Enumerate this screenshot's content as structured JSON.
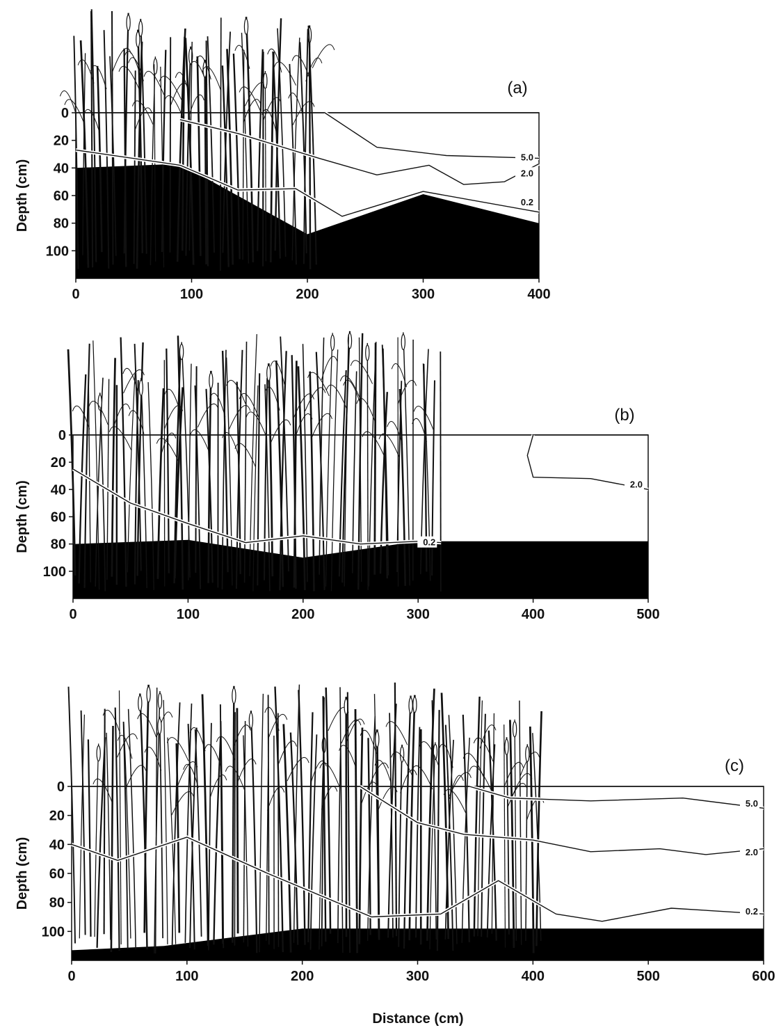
{
  "figure": {
    "xlabel": "Distance (cm)"
  },
  "colors": {
    "sediment": "#000000",
    "vegetation": "#111111",
    "contour": "#111111"
  },
  "chart_data": [
    {
      "type": "contour",
      "panel_label": "(a)",
      "ylabel": "Depth (cm)",
      "xlim": [
        0,
        400
      ],
      "ylim": [
        0,
        120
      ],
      "x_ticks": [
        "0",
        "100",
        "200",
        "300",
        "400"
      ],
      "y_ticks": [
        "0",
        "20",
        "40",
        "60",
        "80",
        "100"
      ],
      "vegetation_extent": [
        0,
        210
      ],
      "bottom_profile": [
        [
          0,
          40
        ],
        [
          90,
          37
        ],
        [
          200,
          88
        ],
        [
          300,
          59
        ],
        [
          400,
          80
        ]
      ],
      "contours": [
        {
          "label": "5.0",
          "points": [
            [
              215,
              0
            ],
            [
              260,
              25
            ],
            [
              320,
              31
            ],
            [
              400,
              33
            ]
          ]
        },
        {
          "label": "2.0",
          "points": [
            [
              90,
              5
            ],
            [
              140,
              15
            ],
            [
              210,
              33
            ],
            [
              260,
              45
            ],
            [
              305,
              38
            ],
            [
              335,
              52
            ],
            [
              370,
              50
            ],
            [
              400,
              37
            ]
          ]
        },
        {
          "label": "0.2",
          "points": [
            [
              0,
              27
            ],
            [
              90,
              38
            ],
            [
              140,
              56
            ],
            [
              190,
              55
            ],
            [
              230,
              75
            ],
            [
              300,
              57
            ],
            [
              400,
              72
            ]
          ]
        }
      ]
    },
    {
      "type": "contour",
      "panel_label": "(b)",
      "ylabel": "Depth (cm)",
      "xlim": [
        0,
        500
      ],
      "ylim": [
        0,
        120
      ],
      "x_ticks": [
        "0",
        "100",
        "200",
        "300",
        "400",
        "500"
      ],
      "y_ticks": [
        "0",
        "20",
        "40",
        "60",
        "80",
        "100"
      ],
      "vegetation_extent": [
        0,
        320
      ],
      "bottom_profile": [
        [
          0,
          80
        ],
        [
          100,
          77
        ],
        [
          200,
          90
        ],
        [
          300,
          78
        ],
        [
          500,
          78
        ]
      ],
      "contours": [
        {
          "label": "2.0",
          "points": [
            [
              400,
              0
            ],
            [
              395,
              15
            ],
            [
              400,
              31
            ],
            [
              450,
              32
            ],
            [
              500,
              40
            ]
          ]
        },
        {
          "label": "0.2",
          "points": [
            [
              0,
              25
            ],
            [
              50,
              50
            ],
            [
              100,
              65
            ],
            [
              150,
              79
            ],
            [
              200,
              74
            ],
            [
              250,
              80
            ],
            [
              300,
              78
            ],
            [
              320,
              79
            ]
          ]
        }
      ]
    },
    {
      "type": "contour",
      "panel_label": "(c)",
      "ylabel": "Depth (cm)",
      "xlim": [
        0,
        600
      ],
      "ylim": [
        0,
        120
      ],
      "x_ticks": [
        "0",
        "100",
        "200",
        "300",
        "400",
        "500",
        "600"
      ],
      "y_ticks": [
        "0",
        "20",
        "40",
        "60",
        "80",
        "100"
      ],
      "vegetation_extent": [
        0,
        410
      ],
      "bottom_profile": [
        [
          0,
          113
        ],
        [
          80,
          110
        ],
        [
          200,
          98
        ],
        [
          350,
          98
        ],
        [
          400,
          98
        ],
        [
          600,
          98
        ]
      ],
      "contours": [
        {
          "label": "5.0",
          "points": [
            [
              345,
              0
            ],
            [
              380,
              8
            ],
            [
              450,
              10
            ],
            [
              530,
              8
            ],
            [
              600,
              15
            ]
          ]
        },
        {
          "label": "2.0",
          "points": [
            [
              250,
              0
            ],
            [
              300,
              25
            ],
            [
              340,
              33
            ],
            [
              400,
              37
            ],
            [
              450,
              45
            ],
            [
              510,
              43
            ],
            [
              550,
              47
            ],
            [
              600,
              43
            ]
          ]
        },
        {
          "label": "0.2",
          "points": [
            [
              0,
              40
            ],
            [
              40,
              51
            ],
            [
              100,
              35
            ],
            [
              170,
              60
            ],
            [
              260,
              90
            ],
            [
              320,
              88
            ],
            [
              370,
              65
            ],
            [
              420,
              88
            ],
            [
              460,
              93
            ],
            [
              520,
              84
            ],
            [
              600,
              88
            ]
          ]
        }
      ]
    }
  ]
}
